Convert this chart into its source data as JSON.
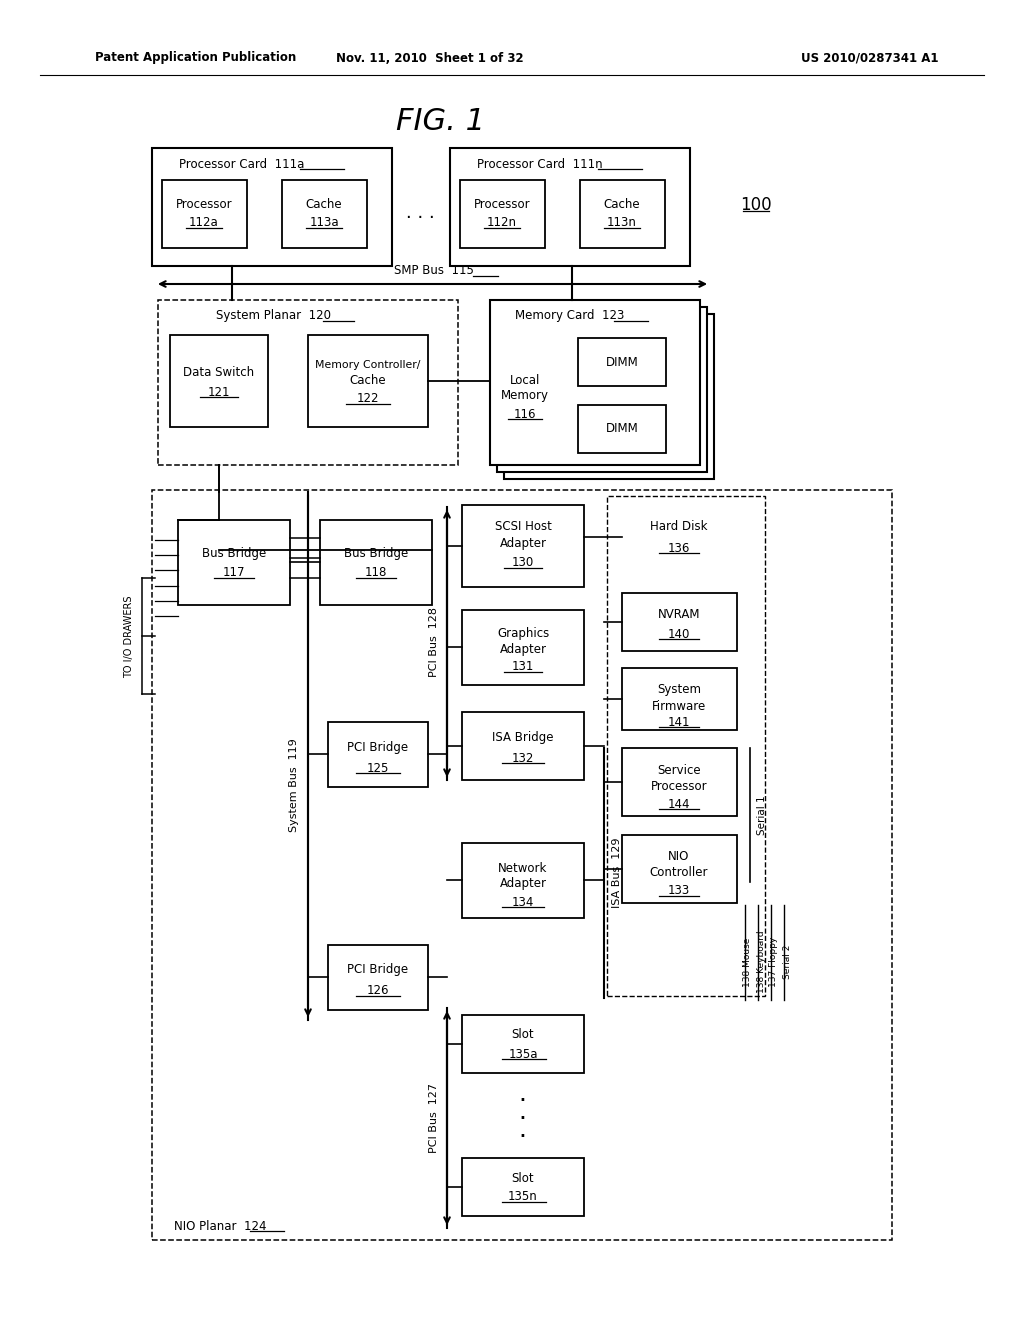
{
  "bg_color": "#ffffff",
  "header_left": "Patent Application Publication",
  "header_mid": "Nov. 11, 2010  Sheet 1 of 32",
  "header_right": "US 2010/0287341 A1",
  "fig_title": "FIG. 1"
}
